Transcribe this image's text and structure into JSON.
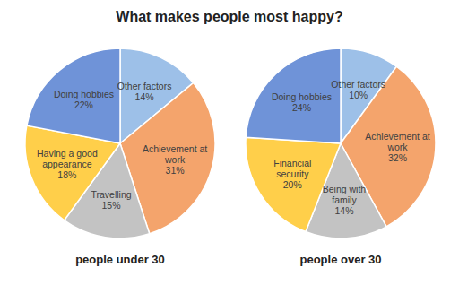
{
  "title": "What makes people most happy?",
  "chart_data": [
    {
      "type": "pie",
      "title": "people under 30",
      "categories": [
        "Other factors",
        "Achievement at work",
        "Travelling",
        "Having a good appearance",
        "Doing hobbies"
      ],
      "values": [
        14,
        31,
        15,
        18,
        22
      ],
      "value_labels": [
        "14%",
        "31%",
        "15%",
        "18%",
        "22%"
      ],
      "colors": [
        "#9dc0e8",
        "#f4a46c",
        "#c3c3c3",
        "#ffcf4a",
        "#6f93d8"
      ],
      "data_labels": true
    },
    {
      "type": "pie",
      "title": "people over 30",
      "categories": [
        "Other factors",
        "Achievement at work",
        "Being with family",
        "Financial security",
        "Doing hobbies"
      ],
      "values": [
        10,
        32,
        14,
        20,
        24
      ],
      "value_labels": [
        "10%",
        "32%",
        "14%",
        "20%",
        "24%"
      ],
      "colors": [
        "#9dc0e8",
        "#f4a46c",
        "#c3c3c3",
        "#ffcf4a",
        "#6f93d8"
      ],
      "data_labels": true
    }
  ]
}
